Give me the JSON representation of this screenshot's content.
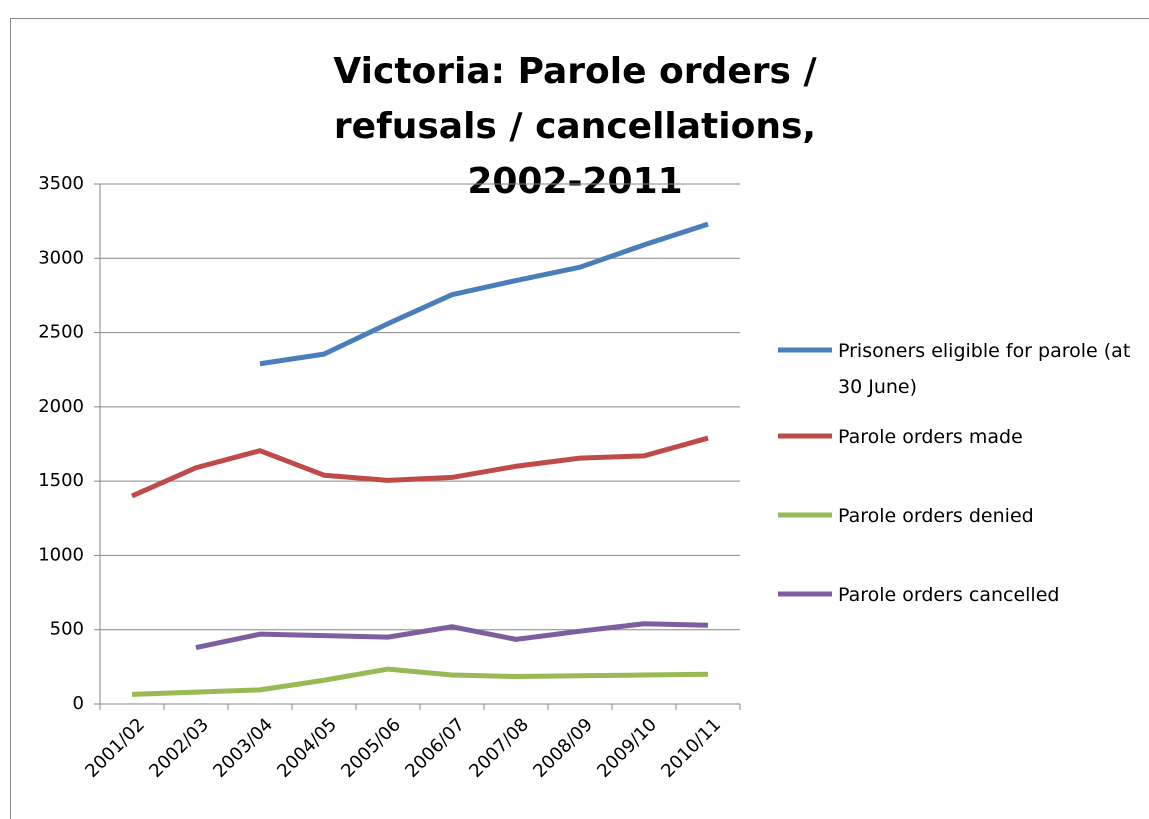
{
  "chart_data": {
    "type": "line",
    "title": "Victoria: Parole orders / refusals / cancellations, 2002-2011",
    "categories": [
      "2001/02",
      "2002/03",
      "2003/04",
      "2004/05",
      "2005/06",
      "2006/07",
      "2007/08",
      "2008/09",
      "2009/10",
      "2010/11"
    ],
    "series": [
      {
        "name": "Prisoners eligible for parole (at 30 June)",
        "color": "#4a7ebb",
        "values": [
          null,
          null,
          2290,
          2355,
          2560,
          2755,
          2850,
          2940,
          3090,
          3230
        ]
      },
      {
        "name": "Parole orders made",
        "color": "#be4b48",
        "values": [
          1400,
          1590,
          1705,
          1540,
          1505,
          1525,
          1600,
          1655,
          1670,
          1790
        ]
      },
      {
        "name": "Parole orders denied",
        "color": "#98b954",
        "values": [
          65,
          80,
          95,
          160,
          235,
          195,
          185,
          190,
          195,
          200
        ]
      },
      {
        "name": "Parole orders cancelled",
        "color": "#7d5fa0",
        "values": [
          null,
          380,
          470,
          460,
          450,
          520,
          435,
          490,
          540,
          530
        ]
      }
    ],
    "ylim": [
      0,
      3500
    ],
    "yticks": [
      0,
      500,
      1000,
      1500,
      2000,
      2500,
      3000,
      3500
    ],
    "grid": true,
    "legend": "right"
  }
}
